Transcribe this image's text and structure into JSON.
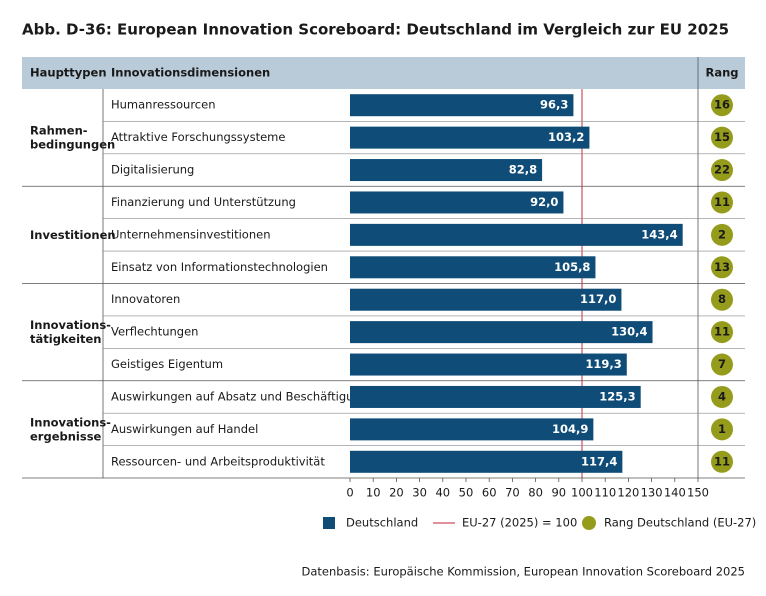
{
  "chart_data": {
    "type": "bar",
    "orientation": "horizontal",
    "title": "Abb. D-36: European Innovation Scoreboard: Deutschland im Vergleich zur EU 2025",
    "column_headers": [
      "Haupttypen",
      "Innovationsdimensionen",
      "Rang"
    ],
    "groups": [
      {
        "label": [
          "Rahmen-",
          "bedingungen"
        ],
        "categories": [
          "Humanressourcen",
          "Attraktive Forschungssysteme",
          "Digitalisierung"
        ]
      },
      {
        "label": [
          "Investitionen"
        ],
        "categories": [
          "Finanzierung und Unterstützung",
          "Unternehmensinvestitionen",
          "Einsatz von Informationstechnologien"
        ]
      },
      {
        "label": [
          "Innovations-",
          "tätigkeiten"
        ],
        "categories": [
          "Innovatoren",
          "Verflechtungen",
          "Geistiges Eigentum"
        ]
      },
      {
        "label": [
          "Innovations-",
          "ergebnisse"
        ],
        "categories": [
          "Auswirkungen auf Absatz und Beschäftigung",
          "Auswirkungen auf Handel",
          "Ressourcen- und Arbeitsproduktivität"
        ]
      }
    ],
    "series": [
      {
        "name": "Deutschland",
        "color": "#0f4c78",
        "values": [
          96.3,
          103.2,
          82.8,
          92.0,
          143.4,
          105.8,
          117.0,
          130.4,
          119.3,
          125.3,
          104.9,
          117.4
        ],
        "value_labels": [
          "96,3",
          "103,2",
          "82,8",
          "92,0",
          "143,4",
          "105,8",
          "117,0",
          "130,4",
          "119,3",
          "125,3",
          "104,9",
          "117,4"
        ]
      }
    ],
    "reference_line": {
      "name": "EU-27 (2025) = 100",
      "value": 100,
      "color": "#c9505f"
    },
    "ranks": {
      "name": "Rang Deutschland (EU-27)",
      "color": "#959c1b",
      "values": [
        16,
        15,
        22,
        11,
        2,
        13,
        8,
        11,
        7,
        4,
        1,
        11
      ]
    },
    "xlim": [
      0,
      150
    ],
    "xticks": [
      0,
      10,
      20,
      30,
      40,
      50,
      60,
      70,
      80,
      90,
      100,
      110,
      120,
      130,
      140,
      150
    ],
    "source": "Datenbasis: Europäische Kommission, European Innovation Scoreboard 2025"
  }
}
